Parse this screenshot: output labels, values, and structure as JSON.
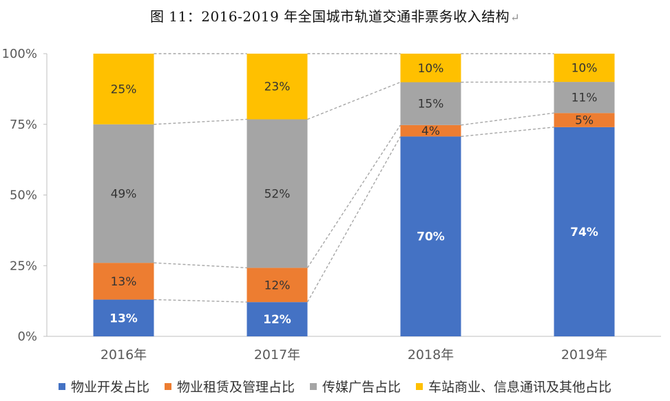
{
  "title": "图 11：2016-2019 年全国城市轨道交通非票务收入结构",
  "title_mark": "↵",
  "chart_data": {
    "type": "bar",
    "stacked": true,
    "normalized": true,
    "categories": [
      "2016年",
      "2017年",
      "2018年",
      "2019年"
    ],
    "series": [
      {
        "name": "物业开发占比",
        "color": "#4472C4",
        "values": [
          13,
          12,
          70,
          74
        ],
        "labels": [
          "13%",
          "12%",
          "70%",
          "74%"
        ],
        "label_color": "#ffffff",
        "label_bold": true
      },
      {
        "name": "物业租赁及管理占比",
        "color": "#ED7D31",
        "values": [
          13,
          12,
          4,
          5
        ],
        "labels": [
          "13%",
          "12%",
          "4%",
          "5%"
        ],
        "label_color": "#333333",
        "label_bold": false
      },
      {
        "name": "传媒广告占比",
        "color": "#A5A5A5",
        "values": [
          49,
          52,
          15,
          11
        ],
        "labels": [
          "49%",
          "52%",
          "15%",
          "11%"
        ],
        "label_color": "#333333",
        "label_bold": false
      },
      {
        "name": "车站商业、信息通讯及其他占比",
        "color": "#FFC000",
        "values": [
          25,
          23,
          10,
          10
        ],
        "labels": [
          "25%",
          "23%",
          "10%",
          "10%"
        ],
        "label_color": "#333333",
        "label_bold": false
      }
    ],
    "ylim": [
      0,
      100
    ],
    "yticks": [
      "0%",
      "25%",
      "50%",
      "75%",
      "100%"
    ],
    "series_lines": "dashed",
    "legend_position": "bottom",
    "grid": false
  }
}
